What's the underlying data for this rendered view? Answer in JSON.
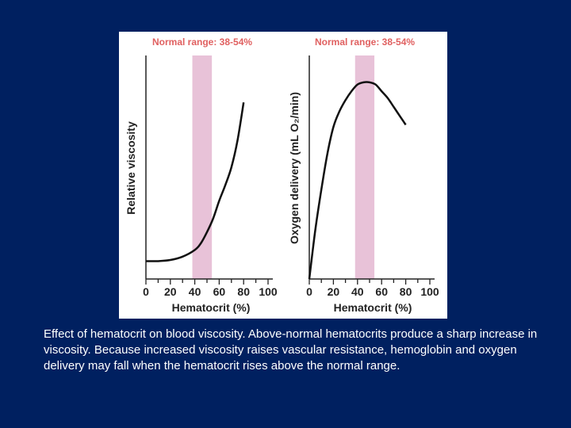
{
  "colors": {
    "background": "#002060",
    "panel": "#ffffff",
    "band": "#e8c2d8",
    "range_label": "#e06060",
    "curve": "#111111",
    "caption_text": "#ffffff"
  },
  "caption": "Effect of hematocrit on blood viscosity.  Above-normal hematocrits produce a sharp increase in viscosity.  Because increased viscosity raises vascular resistance, hemoglobin and oxygen delivery may fall when the hematocrit rises above the normal range.",
  "chart_data": [
    {
      "type": "line",
      "range_label": "Normal range: 38-54%",
      "normal_range": [
        38,
        54
      ],
      "xlabel": "Hematocrit (%)",
      "ylabel": "Relative viscosity",
      "xlim": [
        0,
        100
      ],
      "ylim": [
        0,
        1
      ],
      "xticks": [
        "0",
        "20",
        "40",
        "60",
        "80",
        "100"
      ],
      "series": [
        {
          "x": [
            0,
            10,
            20,
            30,
            40,
            45,
            50,
            55,
            60,
            65,
            70,
            75,
            80
          ],
          "y": [
            0.08,
            0.08,
            0.085,
            0.1,
            0.13,
            0.16,
            0.21,
            0.27,
            0.35,
            0.42,
            0.5,
            0.62,
            0.79
          ]
        }
      ]
    },
    {
      "type": "line",
      "range_label": "Normal range: 38-54%",
      "normal_range": [
        38,
        54
      ],
      "xlabel": "Hematocrit (%)",
      "ylabel": "Oxygen delivery (mL O₂/min)",
      "xlim": [
        0,
        100
      ],
      "ylim": [
        0,
        1
      ],
      "xticks": [
        "0",
        "20",
        "40",
        "60",
        "80",
        "100"
      ],
      "series": [
        {
          "x": [
            0,
            5,
            10,
            15,
            20,
            25,
            30,
            35,
            40,
            45,
            50,
            55,
            60,
            65,
            70,
            75,
            80
          ],
          "y": [
            0.0,
            0.22,
            0.4,
            0.56,
            0.68,
            0.75,
            0.8,
            0.84,
            0.87,
            0.88,
            0.88,
            0.87,
            0.84,
            0.81,
            0.77,
            0.73,
            0.69
          ]
        }
      ]
    }
  ]
}
